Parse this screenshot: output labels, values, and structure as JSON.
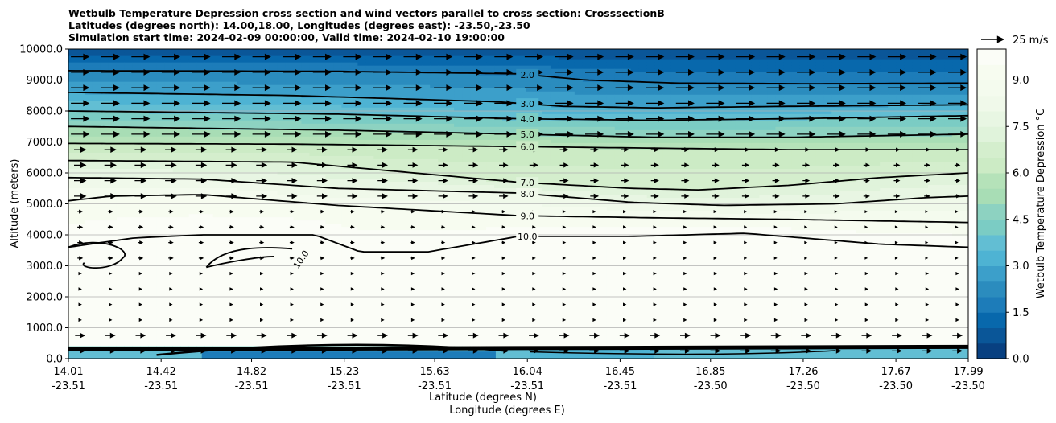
{
  "chart_data": {
    "type": "heatmap",
    "title_lines": [
      "Wetbulb Temperature Depression cross section and wind vectors parallel to cross section: CrosssectionB",
      "Latitudes (degrees north): 14.00,18.00, Longitudes (degrees east): -23.50,-23.50",
      "Simulation start time: 2024-02-09 00:00:00, Valid time: 2024-02-10 19:00:00"
    ],
    "ylabel": "Altitude (meters)",
    "xlabel_lines": [
      "Latitude (degrees N)",
      "Longitude (degrees E)"
    ],
    "ylim": [
      0,
      10000
    ],
    "xlim": [
      14.01,
      17.99
    ],
    "y_ticks": [
      {
        "v": 0,
        "label": "0.0"
      },
      {
        "v": 1000,
        "label": "1000.0"
      },
      {
        "v": 2000,
        "label": "2000.0"
      },
      {
        "v": 3000,
        "label": "3000.0"
      },
      {
        "v": 4000,
        "label": "4000.0"
      },
      {
        "v": 5000,
        "label": "5000.0"
      },
      {
        "v": 6000,
        "label": "6000.0"
      },
      {
        "v": 7000,
        "label": "7000.0"
      },
      {
        "v": 8000,
        "label": "8000.0"
      },
      {
        "v": 9000,
        "label": "9000.0"
      },
      {
        "v": 10000,
        "label": "10000.0"
      }
    ],
    "x_ticks": [
      {
        "lat": 14.01,
        "lat_label": "14.01",
        "lon_label": "-23.51"
      },
      {
        "lat": 14.42,
        "lat_label": "14.42",
        "lon_label": "-23.51"
      },
      {
        "lat": 14.82,
        "lat_label": "14.82",
        "lon_label": "-23.51"
      },
      {
        "lat": 15.23,
        "lat_label": "15.23",
        "lon_label": "-23.51"
      },
      {
        "lat": 15.63,
        "lat_label": "15.63",
        "lon_label": "-23.51"
      },
      {
        "lat": 16.04,
        "lat_label": "16.04",
        "lon_label": "-23.51"
      },
      {
        "lat": 16.45,
        "lat_label": "16.45",
        "lon_label": "-23.51"
      },
      {
        "lat": 16.85,
        "lat_label": "16.85",
        "lon_label": "-23.50"
      },
      {
        "lat": 17.26,
        "lat_label": "17.26",
        "lon_label": "-23.50"
      },
      {
        "lat": 17.67,
        "lat_label": "17.67",
        "lon_label": "-23.50"
      },
      {
        "lat": 17.99,
        "lat_label": "17.99",
        "lon_label": "-23.50"
      }
    ],
    "grid": "horizontal",
    "colorbar": {
      "label": "Wetbulb Temperature Depression $^\\circ$C",
      "label_display": "Wetbulb Temperature Depression °C",
      "min": 0,
      "max": 10,
      "ticks": [
        {
          "v": 0,
          "label": "0.0"
        },
        {
          "v": 1.5,
          "label": "1.5"
        },
        {
          "v": 3.0,
          "label": "3.0"
        },
        {
          "v": 4.5,
          "label": "4.5"
        },
        {
          "v": 6.0,
          "label": "6.0"
        },
        {
          "v": 7.5,
          "label": "7.5"
        },
        {
          "v": 9.0,
          "label": "9.0"
        }
      ],
      "levels": 20,
      "colors": [
        "#084081",
        "#0a5698",
        "#0868ac",
        "#1d7cb9",
        "#2b8cbe",
        "#3c9fca",
        "#4eb3d3",
        "#62bed3",
        "#7bccc4",
        "#8dd2c1",
        "#a8ddb5",
        "#b5e2b9",
        "#ccebc5",
        "#d4eecd",
        "#e0f3db",
        "#e8f6e3",
        "#f0f9ea",
        "#f4fbee",
        "#f7fcf0",
        "#fbfdf7"
      ]
    },
    "series": [
      {
        "level": 2.0,
        "label": "2.0",
        "lat": [
          14.01,
          15.2,
          16.0,
          16.3,
          16.7,
          17.3,
          17.99
        ],
        "alt": [
          9300,
          9280,
          9200,
          9000,
          8900,
          8880,
          8900
        ]
      },
      {
        "level": 3.0,
        "label": "3.0",
        "lat": [
          14.01,
          15.0,
          15.9,
          16.2,
          16.6,
          17.2,
          17.99
        ],
        "alt": [
          8600,
          8500,
          8300,
          8150,
          8100,
          8150,
          8200
        ]
      },
      {
        "level": 4.0,
        "label": "4.0",
        "lat": [
          14.01,
          15.2,
          16.0,
          16.6,
          17.2,
          17.99
        ],
        "alt": [
          8000,
          7900,
          7750,
          7700,
          7750,
          7850
        ]
      },
      {
        "level": 5.0,
        "label": "5.0",
        "lat": [
          14.01,
          15.2,
          16.0,
          16.6,
          17.2,
          17.99
        ],
        "alt": [
          7500,
          7380,
          7250,
          7150,
          7150,
          7250
        ]
      },
      {
        "level": 6.0,
        "label": "6.0",
        "lat": [
          14.01,
          15.0,
          16.0,
          16.6,
          17.2,
          17.99
        ],
        "alt": [
          6950,
          6930,
          6850,
          6800,
          6750,
          6750
        ]
      },
      {
        "level": 7.0,
        "label": "7.0",
        "lat": [
          14.01,
          15.0,
          16.0,
          16.5,
          16.8,
          17.2,
          17.6,
          17.99
        ],
        "alt": [
          6400,
          6350,
          5700,
          5500,
          5450,
          5600,
          5850,
          6000
        ]
      },
      {
        "level": 8.0,
        "label": "8.0",
        "lat": [
          14.01,
          14.6,
          15.2,
          16.0,
          16.5,
          16.9,
          17.4,
          17.8,
          17.99
        ],
        "alt": [
          5850,
          5800,
          5500,
          5350,
          5050,
          4950,
          5000,
          5200,
          5250
        ]
      },
      {
        "level": 9.0,
        "label": "9.0",
        "lat": [
          14.01,
          14.2,
          14.6,
          15.2,
          16.0,
          16.6,
          17.2,
          17.99
        ],
        "alt": [
          5100,
          5250,
          5300,
          4950,
          4620,
          4550,
          4500,
          4400
        ]
      },
      {
        "level": 10.0,
        "label": "10.0",
        "lat": [
          14.01,
          14.3,
          14.6,
          15.1,
          15.3,
          15.6,
          16.0,
          16.5,
          17.0,
          17.6,
          17.99
        ],
        "alt": [
          3600,
          3900,
          4000,
          4000,
          3450,
          3450,
          3950,
          3950,
          4050,
          3700,
          3600
        ]
      }
    ],
    "wind_vectors": {
      "direction": "parallel, toward increasing latitude",
      "reference_label": "25 m/s",
      "reference_speed_ms": 25
    }
  }
}
